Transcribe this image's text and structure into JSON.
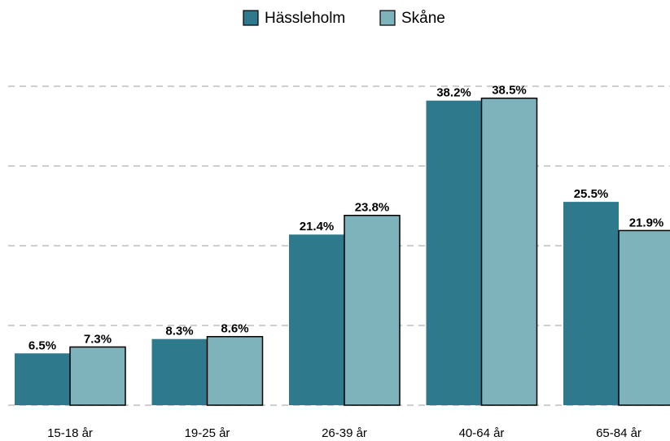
{
  "chart_data": {
    "type": "bar",
    "categories": [
      "15-18 år",
      "19-25 år",
      "26-39 år",
      "40-64 år",
      "65-84 år"
    ],
    "series": [
      {
        "name": "Hässleholm",
        "color": "#2e7a8c",
        "values": [
          6.5,
          8.3,
          21.4,
          38.2,
          25.5
        ],
        "value_labels": [
          "6.5%",
          "8.3%",
          "21.4%",
          "38.2%",
          "25.5%"
        ]
      },
      {
        "name": "Skåne",
        "color": "#7fb3bc",
        "values": [
          7.3,
          8.6,
          23.8,
          38.5,
          21.9
        ],
        "value_labels": [
          "7.3%",
          "8.6%",
          "23.8%",
          "38.5%",
          "21.9%"
        ]
      }
    ],
    "ylim": [
      0,
      40
    ],
    "yticks": [
      0,
      10,
      20,
      30,
      40
    ],
    "grid": true,
    "legend": "top"
  }
}
